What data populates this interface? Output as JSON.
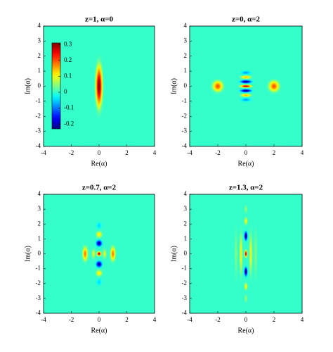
{
  "chart_data": [
    {
      "type": "heatmap",
      "title": "z=1, α=0",
      "xlabel": "Re(α)",
      "ylabel": "Im(α)",
      "colormap": "jet",
      "xlim": [
        -4,
        4
      ],
      "ylim": [
        -4,
        4
      ],
      "xticks": [
        -4,
        -2,
        0,
        2,
        4
      ],
      "yticks": [
        -4,
        -3,
        -2,
        -1,
        0,
        1,
        2,
        3,
        4
      ],
      "colorbar": {
        "clim": [
          -0.23,
          0.31
        ],
        "ticks": [
          -0.2,
          -0.1,
          0,
          0.1,
          0.2,
          0.3
        ]
      },
      "peaks": [
        {
          "x": 0,
          "y": 0,
          "value": 0.31,
          "rx": 0.4,
          "ry": 2.3
        }
      ]
    },
    {
      "type": "heatmap",
      "title": "z=0, α=2",
      "xlabel": "Re(α)",
      "ylabel": "Im(α)",
      "colormap": "jet",
      "xlim": [
        -4,
        4
      ],
      "ylim": [
        -4,
        4
      ],
      "xticks": [
        -4,
        -2,
        0,
        2,
        4
      ],
      "yticks": [
        -4,
        -3,
        -2,
        -1,
        0,
        1,
        2,
        3,
        4
      ],
      "peaks": [
        {
          "x": -2,
          "y": 0,
          "value": 0.2,
          "rx": 0.6,
          "ry": 0.6
        },
        {
          "x": 2,
          "y": 0,
          "value": 0.2,
          "rx": 0.6,
          "ry": 0.6
        },
        {
          "x": 0,
          "y": 0.9,
          "value": -0.08,
          "rx": 0.55,
          "ry": 0.2
        },
        {
          "x": 0,
          "y": -0.9,
          "value": -0.08,
          "rx": 0.55,
          "ry": 0.2
        },
        {
          "x": 0,
          "y": 0.6,
          "value": 0.15,
          "rx": 0.6,
          "ry": 0.18
        },
        {
          "x": 0,
          "y": -0.6,
          "value": 0.15,
          "rx": 0.6,
          "ry": 0.18
        },
        {
          "x": 0,
          "y": 0.3,
          "value": -0.23,
          "rx": 0.65,
          "ry": 0.17
        },
        {
          "x": 0,
          "y": -0.3,
          "value": -0.23,
          "rx": 0.65,
          "ry": 0.17
        },
        {
          "x": 0,
          "y": 0,
          "value": 0.3,
          "rx": 0.65,
          "ry": 0.15
        }
      ]
    },
    {
      "type": "heatmap",
      "title": "z=0.7, α=2",
      "xlabel": "Re(α)",
      "ylabel": "Im(α)",
      "colormap": "jet",
      "xlim": [
        -4,
        4
      ],
      "ylim": [
        -4,
        4
      ],
      "xticks": [
        -4,
        -2,
        0,
        2,
        4
      ],
      "yticks": [
        -4,
        -3,
        -2,
        -1,
        0,
        1,
        2,
        3,
        4
      ],
      "peaks": [
        {
          "x": 0,
          "y": 1.9,
          "value": -0.05,
          "rx": 0.3,
          "ry": 0.35
        },
        {
          "x": 0,
          "y": -1.9,
          "value": -0.05,
          "rx": 0.3,
          "ry": 0.35
        },
        {
          "x": 0,
          "y": 1.3,
          "value": 0.12,
          "rx": 0.35,
          "ry": 0.35
        },
        {
          "x": 0,
          "y": -1.3,
          "value": 0.12,
          "rx": 0.35,
          "ry": 0.35
        },
        {
          "x": -1,
          "y": 0,
          "value": 0.18,
          "rx": 0.3,
          "ry": 0.8
        },
        {
          "x": 1,
          "y": 0,
          "value": 0.18,
          "rx": 0.3,
          "ry": 0.8
        },
        {
          "x": -0.4,
          "y": 0,
          "value": 0.1,
          "rx": 0.2,
          "ry": 0.5
        },
        {
          "x": 0.4,
          "y": 0,
          "value": 0.1,
          "rx": 0.2,
          "ry": 0.5
        },
        {
          "x": 0,
          "y": 0.7,
          "value": -0.22,
          "rx": 0.35,
          "ry": 0.35
        },
        {
          "x": 0,
          "y": -0.7,
          "value": -0.22,
          "rx": 0.35,
          "ry": 0.35
        },
        {
          "x": 0,
          "y": 0,
          "value": 0.3,
          "rx": 0.25,
          "ry": 0.25
        }
      ]
    },
    {
      "type": "heatmap",
      "title": "z=1.3, α=2",
      "xlabel": "Re(α)",
      "ylabel": "Im(α)",
      "colormap": "jet",
      "xlim": [
        -4,
        4
      ],
      "ylim": [
        -4,
        4
      ],
      "xticks": [
        -4,
        -2,
        0,
        2,
        4
      ],
      "yticks": [
        -4,
        -3,
        -2,
        -1,
        0,
        1,
        2,
        3,
        4
      ],
      "peaks": [
        {
          "x": -0.7,
          "y": 0,
          "value": 0.05,
          "rx": 0.15,
          "ry": 2.5
        },
        {
          "x": 0.7,
          "y": 0,
          "value": 0.05,
          "rx": 0.15,
          "ry": 2.5
        },
        {
          "x": -0.35,
          "y": 0,
          "value": 0.13,
          "rx": 0.15,
          "ry": 2.2
        },
        {
          "x": 0.35,
          "y": 0,
          "value": 0.13,
          "rx": 0.15,
          "ry": 2.2
        },
        {
          "x": 0,
          "y": 3,
          "value": 0.06,
          "rx": 0.15,
          "ry": 0.4
        },
        {
          "x": 0,
          "y": -3,
          "value": 0.06,
          "rx": 0.15,
          "ry": 0.4
        },
        {
          "x": 0,
          "y": 2.2,
          "value": 0.12,
          "rx": 0.18,
          "ry": 0.4
        },
        {
          "x": 0,
          "y": -2.2,
          "value": 0.12,
          "rx": 0.18,
          "ry": 0.4
        },
        {
          "x": 0,
          "y": 1.2,
          "value": -0.25,
          "rx": 0.18,
          "ry": 0.5
        },
        {
          "x": 0,
          "y": -1.2,
          "value": -0.25,
          "rx": 0.18,
          "ry": 0.5
        },
        {
          "x": 0,
          "y": 0,
          "value": 0.3,
          "rx": 0.15,
          "ry": 0.4
        }
      ]
    }
  ]
}
